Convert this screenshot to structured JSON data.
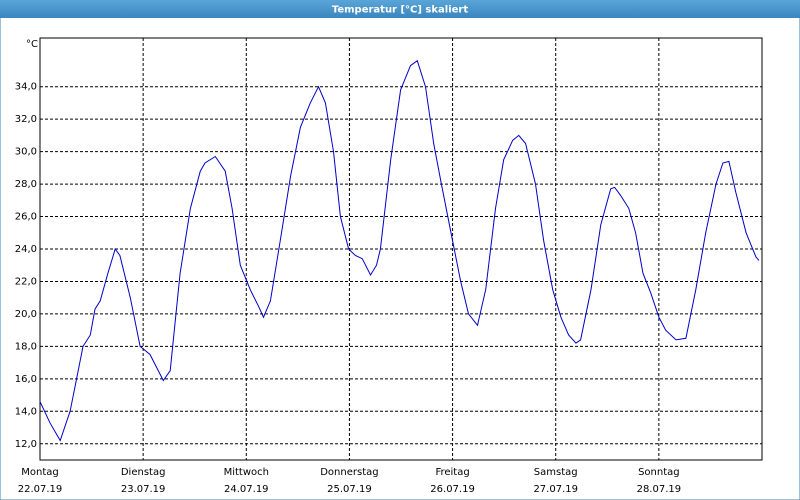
{
  "chart_data": {
    "type": "line",
    "title": "Temperatur [°C] skaliert",
    "y_unit": "°C",
    "x": [
      0,
      2.3,
      4.7,
      7.0,
      8.9,
      10.0,
      11.7,
      12.8,
      14.0,
      15.8,
      17.5,
      18.6,
      21.0,
      23.3,
      25.6,
      28.7,
      30.3,
      32.6,
      35.0,
      37.3,
      38.4,
      40.8,
      43.1,
      44.7,
      46.6,
      48.9,
      50.8,
      52.0,
      53.6,
      55.9,
      58.3,
      60.6,
      62.9,
      64.8,
      66.4,
      68.3,
      69.9,
      71.8,
      73.4,
      75.0,
      76.9,
      78.3,
      79.2,
      81.6,
      83.9,
      86.2,
      87.8,
      89.7,
      91.6,
      93.4,
      96.0,
      97.9,
      99.7,
      101.8,
      103.7,
      106.0,
      107.9,
      110.0,
      111.4,
      113.0,
      115.3,
      117.2,
      119.3,
      121.2,
      123.0,
      124.7,
      125.8,
      128.2,
      130.5,
      132.8,
      133.7,
      135.1,
      137.0,
      138.6,
      140.3,
      142.1,
      144.0,
      145.6,
      148.0,
      150.3,
      152.6,
      154.9,
      157.3,
      158.9,
      160.3,
      161.9,
      164.3,
      166.6,
      167.3
    ],
    "series": [
      {
        "name": "Temperatur",
        "color": "#0000c8",
        "values": [
          14.6,
          13.3,
          12.2,
          14.0,
          16.5,
          18.0,
          18.7,
          20.3,
          20.8,
          22.5,
          24.0,
          23.6,
          21.0,
          18.0,
          17.5,
          15.9,
          16.5,
          22.5,
          26.5,
          28.8,
          29.3,
          29.7,
          28.8,
          26.5,
          23.0,
          21.5,
          20.5,
          19.8,
          20.8,
          24.5,
          28.5,
          31.5,
          33.0,
          34.0,
          33.0,
          30.0,
          26.0,
          24.0,
          23.6,
          23.4,
          22.4,
          23.0,
          24.0,
          29.5,
          33.8,
          35.3,
          35.6,
          34.0,
          30.5,
          28.0,
          24.5,
          22.0,
          20.0,
          19.3,
          21.5,
          26.5,
          29.5,
          30.7,
          31.0,
          30.5,
          28.0,
          24.5,
          21.5,
          19.8,
          18.7,
          18.2,
          18.4,
          21.5,
          25.5,
          27.7,
          27.8,
          27.3,
          26.5,
          25.0,
          22.5,
          21.3,
          19.8,
          19.0,
          18.4,
          18.5,
          21.5,
          25.0,
          28.0,
          29.3,
          29.4,
          27.5,
          25.0,
          23.5,
          23.3
        ]
      }
    ],
    "xlim": [
      0,
      168
    ],
    "ylim": [
      11.0,
      37.0
    ],
    "xticks": [
      {
        "value": 0,
        "label": "Montag",
        "date": "22.07.19"
      },
      {
        "value": 24,
        "label": "Dienstag",
        "date": "23.07.19"
      },
      {
        "value": 48,
        "label": "Mittwoch",
        "date": "24.07.19"
      },
      {
        "value": 72,
        "label": "Donnerstag",
        "date": "25.07.19"
      },
      {
        "value": 96,
        "label": "Freitag",
        "date": "26.07.19"
      },
      {
        "value": 120,
        "label": "Samstag",
        "date": "27.07.19"
      },
      {
        "value": 144,
        "label": "Sonntag",
        "date": "28.07.19"
      }
    ],
    "yticks": [
      {
        "value": 12,
        "label": "12,0"
      },
      {
        "value": 14,
        "label": "14,0"
      },
      {
        "value": 16,
        "label": "16,0"
      },
      {
        "value": 18,
        "label": "18,0"
      },
      {
        "value": 20,
        "label": "20,0"
      },
      {
        "value": 22,
        "label": "22,0"
      },
      {
        "value": 24,
        "label": "24,0"
      },
      {
        "value": 26,
        "label": "26,0"
      },
      {
        "value": 28,
        "label": "28,0"
      },
      {
        "value": 30,
        "label": "30,0"
      },
      {
        "value": 32,
        "label": "32,0"
      },
      {
        "value": 34,
        "label": "34,0"
      }
    ],
    "grid": true
  }
}
